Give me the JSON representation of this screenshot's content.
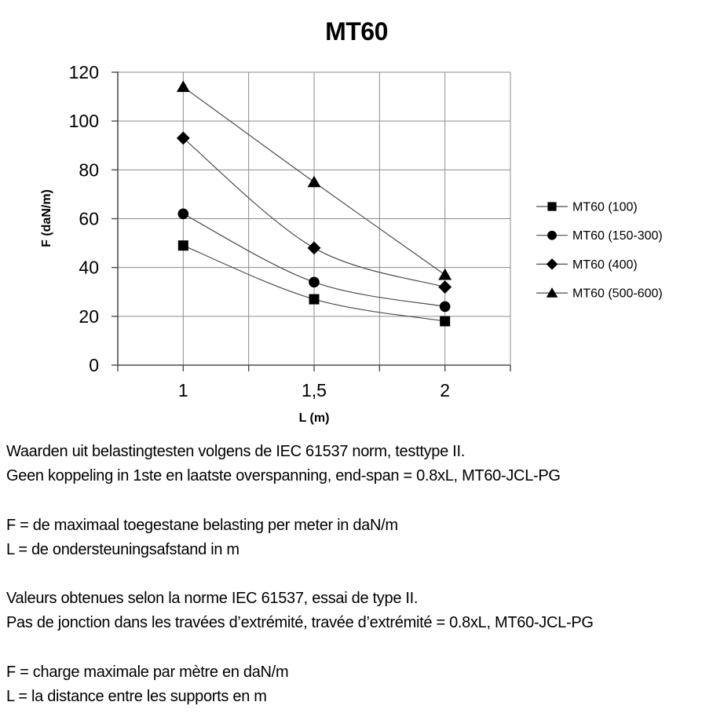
{
  "chart_data": {
    "type": "line",
    "title": "MT60",
    "xlabel": "L (m)",
    "ylabel": "F (daN/m)",
    "categories": [
      "1",
      "1,5",
      "2"
    ],
    "x_values": [
      1,
      1.5,
      2
    ],
    "y_ticks": [
      0,
      20,
      40,
      60,
      80,
      100,
      120
    ],
    "ylim": [
      0,
      120
    ],
    "grid": true,
    "legend_position": "right",
    "series": [
      {
        "name": "MT60 (100)",
        "marker": "square",
        "values": [
          49,
          27,
          18
        ]
      },
      {
        "name": "MT60 (150-300)",
        "marker": "circle",
        "values": [
          62,
          34,
          24
        ]
      },
      {
        "name": "MT60 (400)",
        "marker": "diamond",
        "values": [
          93,
          48,
          32
        ]
      },
      {
        "name": "MT60 (500-600)",
        "marker": "triangle",
        "values": [
          114,
          75,
          37
        ]
      }
    ],
    "colors": {
      "marker": "#000000",
      "line": "#4d4d4d",
      "grid": "#8c8c8c",
      "axis": "#4d4d4d",
      "text": "#000000"
    }
  },
  "notes": {
    "lines": [
      "Waarden uit belastingtesten volgens de IEC 61537 norm, testtype II.",
      "Geen koppeling in 1ste en laatste overspanning, end-span = 0.8xL, MT60-JCL-PG",
      "",
      "F = de maximaal toegestane belasting per meter in daN/m",
      "L = de ondersteuningsafstand in m",
      "",
      "Valeurs obtenues selon la norme IEC 61537, essai de type II.",
      "Pas de jonction dans les travées d’extrémité, travée d’extrémité = 0.8xL, MT60-JCL-PG",
      "",
      "F = charge maximale par mètre en daN/m",
      "L = la distance entre les supports en m"
    ]
  }
}
